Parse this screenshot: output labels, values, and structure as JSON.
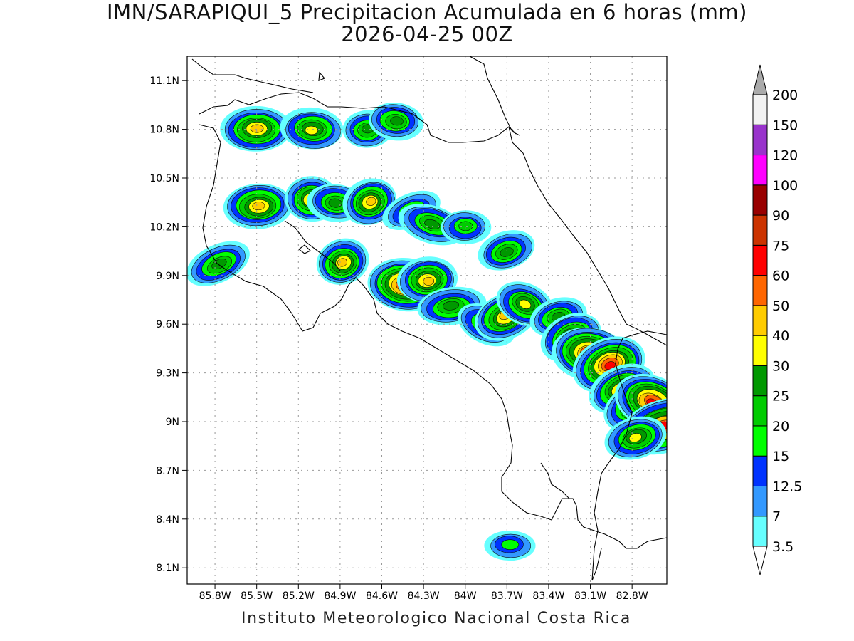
{
  "title": "IMN/SARAPIQUI_5 Precipitacion Acumulada en 6 horas (mm)",
  "subtitle": "2026-04-25 00Z",
  "footer": "Instituto Meteorologico Nacional Costa Rica",
  "map": {
    "lon_range": [
      -86.0,
      -82.55
    ],
    "lat_range": [
      8.0,
      11.25
    ],
    "x_ticks": [
      {
        "lon": -85.8,
        "label": "85.8W"
      },
      {
        "lon": -85.5,
        "label": "85.5W"
      },
      {
        "lon": -85.2,
        "label": "85.2W"
      },
      {
        "lon": -84.9,
        "label": "84.9W"
      },
      {
        "lon": -84.6,
        "label": "84.6W"
      },
      {
        "lon": -84.3,
        "label": "84.3W"
      },
      {
        "lon": -84.0,
        "label": "84W"
      },
      {
        "lon": -83.7,
        "label": "83.7W"
      },
      {
        "lon": -83.4,
        "label": "83.4W"
      },
      {
        "lon": -83.1,
        "label": "83.1W"
      },
      {
        "lon": -82.8,
        "label": "82.8W"
      }
    ],
    "y_ticks": [
      {
        "lat": 11.1,
        "label": "11.1N"
      },
      {
        "lat": 10.8,
        "label": "10.8N"
      },
      {
        "lat": 10.5,
        "label": "10.5N"
      },
      {
        "lat": 10.2,
        "label": "10.2N"
      },
      {
        "lat": 9.9,
        "label": "9.9N"
      },
      {
        "lat": 9.6,
        "label": "9.6N"
      },
      {
        "lat": 9.3,
        "label": "9.3N"
      },
      {
        "lat": 9.0,
        "label": "9N"
      },
      {
        "lat": 8.7,
        "label": "8.7N"
      },
      {
        "lat": 8.4,
        "label": "8.4N"
      },
      {
        "lat": 8.1,
        "label": "8.1N"
      }
    ],
    "grid": true
  },
  "colorbar": {
    "levels": [
      {
        "label": "3.5",
        "color": "#66ffff"
      },
      {
        "label": "7",
        "color": "#3399ff"
      },
      {
        "label": "12.5",
        "color": "#0033ff"
      },
      {
        "label": "15",
        "color": "#00ff00"
      },
      {
        "label": "20",
        "color": "#00cc00"
      },
      {
        "label": "25",
        "color": "#009900"
      },
      {
        "label": "30",
        "color": "#ffff00"
      },
      {
        "label": "40",
        "color": "#ffcc00"
      },
      {
        "label": "50",
        "color": "#ff6600"
      },
      {
        "label": "60",
        "color": "#ff0000"
      },
      {
        "label": "75",
        "color": "#cc3300"
      },
      {
        "label": "90",
        "color": "#990000"
      },
      {
        "label": "100",
        "color": "#ff00ff"
      },
      {
        "label": "120",
        "color": "#9933cc"
      },
      {
        "label": "150",
        "color": "#f2f2f2"
      },
      {
        "label": "200",
        "color": "#aaaaaa"
      }
    ]
  },
  "precipitation_cells": [
    {
      "lon": -85.5,
      "lat": 10.8,
      "peak": 40
    },
    {
      "lon": -85.1,
      "lat": 10.8,
      "peak": 30
    },
    {
      "lon": -84.7,
      "lat": 10.8,
      "peak": 25
    },
    {
      "lon": -84.5,
      "lat": 10.85,
      "peak": 25
    },
    {
      "lon": -85.49,
      "lat": 10.33,
      "peak": 40
    },
    {
      "lon": -85.1,
      "lat": 10.37,
      "peak": 40
    },
    {
      "lon": -84.93,
      "lat": 10.35,
      "peak": 25
    },
    {
      "lon": -84.68,
      "lat": 10.35,
      "peak": 40
    },
    {
      "lon": -84.88,
      "lat": 9.98,
      "peak": 40
    },
    {
      "lon": -85.77,
      "lat": 9.97,
      "peak": 25
    },
    {
      "lon": -84.39,
      "lat": 10.3,
      "peak": 20
    },
    {
      "lon": -84.24,
      "lat": 10.22,
      "peak": 25
    },
    {
      "lon": -84.0,
      "lat": 10.2,
      "peak": 20
    },
    {
      "lon": -83.7,
      "lat": 10.05,
      "peak": 25
    },
    {
      "lon": -84.43,
      "lat": 9.84,
      "peak": 60
    },
    {
      "lon": -84.27,
      "lat": 9.87,
      "peak": 40
    },
    {
      "lon": -84.1,
      "lat": 9.71,
      "peak": 25
    },
    {
      "lon": -83.85,
      "lat": 9.6,
      "peak": 25
    },
    {
      "lon": -83.71,
      "lat": 9.65,
      "peak": 40
    },
    {
      "lon": -83.57,
      "lat": 9.72,
      "peak": 30
    },
    {
      "lon": -83.33,
      "lat": 9.64,
      "peak": 25
    },
    {
      "lon": -83.24,
      "lat": 9.52,
      "peak": 40
    },
    {
      "lon": -83.1,
      "lat": 9.42,
      "peak": 60
    },
    {
      "lon": -82.96,
      "lat": 9.35,
      "peak": 60
    },
    {
      "lon": -82.87,
      "lat": 9.2,
      "peak": 40
    },
    {
      "lon": -82.77,
      "lat": 9.1,
      "peak": 40
    },
    {
      "lon": -82.65,
      "lat": 9.12,
      "peak": 60
    },
    {
      "lon": -82.57,
      "lat": 8.97,
      "peak": 60
    },
    {
      "lon": -82.77,
      "lat": 8.9,
      "peak": 30
    },
    {
      "lon": -83.68,
      "lat": 8.24,
      "peak": 15
    }
  ]
}
